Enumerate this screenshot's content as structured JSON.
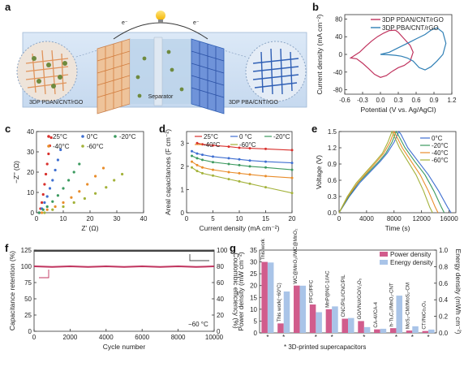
{
  "panel_letters": [
    "a",
    "b",
    "c",
    "d",
    "e",
    "f",
    "g"
  ],
  "colors": {
    "crimson": "#c0335e",
    "steelblue": "#2f7fb5",
    "red25": "#d9302c",
    "blue0": "#3f6fd1",
    "green_20": "#3c9a5f",
    "orange_40": "#e98d2b",
    "olive_60": "#a3b23a",
    "pink_bar": "#d15c8c",
    "lightblue_bar": "#a9c4e8"
  },
  "panel_a": {
    "left_label": "3DP PDAN/CNT/rGO",
    "right_label": "3DP PBA/CNT/rGO",
    "separator_label": "Separator",
    "electron_left": "e⁻",
    "electron_right": "e⁻",
    "icons": [
      "lightbulb-icon"
    ]
  },
  "chart_data": [
    {
      "id": "b",
      "type": "line",
      "xlabel": "Potential (V vs. Ag/AgCl)",
      "ylabel": "Current density (mA cm⁻²)",
      "xlim": [
        -0.6,
        1.2
      ],
      "ylim": [
        -90,
        90
      ],
      "xticks": [
        -0.6,
        -0.3,
        0.0,
        0.3,
        0.6,
        0.9,
        1.2
      ],
      "xtick_labels": [
        "-0.6",
        "-0.3",
        "0.0",
        "0.3",
        "0.6",
        "0.9",
        "1.2"
      ],
      "yticks": [
        -80,
        -40,
        0,
        40,
        80
      ],
      "legend": "top-right",
      "series": [
        {
          "name": "3DP PDAN/CNT/rGO",
          "color": "#c0335e",
          "x": [
            -0.5,
            -0.35,
            -0.25,
            -0.15,
            -0.05,
            0.05,
            0.15,
            0.25,
            0.3,
            0.4,
            0.5,
            0.55,
            0.5,
            0.4,
            0.3,
            0.2,
            0.1,
            0.0,
            -0.1,
            -0.2,
            -0.3,
            -0.4,
            -0.5
          ],
          "y": [
            -8,
            5,
            18,
            30,
            40,
            48,
            54,
            55,
            50,
            35,
            20,
            5,
            -15,
            -25,
            -30,
            -38,
            -48,
            -52,
            -45,
            -32,
            -20,
            -10,
            -8
          ]
        },
        {
          "name": "3DP PBA/CNT/rGO",
          "color": "#2f7fb5",
          "x": [
            0.0,
            0.15,
            0.3,
            0.45,
            0.6,
            0.75,
            0.85,
            0.95,
            1.05,
            1.1,
            1.05,
            0.95,
            0.85,
            0.75,
            0.65,
            0.55,
            0.45,
            0.35,
            0.25,
            0.15,
            0.0
          ],
          "y": [
            0,
            5,
            15,
            25,
            35,
            45,
            55,
            60,
            50,
            25,
            0,
            -15,
            -28,
            -35,
            -30,
            -15,
            -8,
            -4,
            -2,
            -1,
            0
          ]
        }
      ]
    },
    {
      "id": "c",
      "type": "scatter",
      "xlabel": "Z’ (Ω)",
      "ylabel": "−Z’’ (Ω)",
      "xlim": [
        0,
        40
      ],
      "ylim": [
        0,
        40
      ],
      "xticks": [
        0,
        10,
        20,
        30,
        40
      ],
      "yticks": [
        0,
        10,
        20,
        30,
        40
      ],
      "series": [
        {
          "name": "25°C",
          "color": "#d9302c",
          "x": [
            1,
            1.5,
            2,
            2.5,
            3,
            3.5,
            4,
            4.5,
            5,
            5.5
          ],
          "y": [
            0,
            2,
            5,
            9,
            14,
            19,
            24,
            29,
            33,
            37
          ]
        },
        {
          "name": "0°C",
          "color": "#3f6fd1",
          "x": [
            1,
            2,
            3,
            4,
            5,
            6,
            7,
            8,
            9
          ],
          "y": [
            0,
            2,
            5,
            8,
            12,
            16,
            21,
            26,
            31
          ]
        },
        {
          "name": "-20°C",
          "color": "#3c9a5f",
          "x": [
            1,
            2.5,
            4,
            6,
            8,
            10,
            12,
            14,
            16
          ],
          "y": [
            0,
            1.5,
            3,
            5.5,
            8.5,
            12,
            16,
            20,
            24
          ]
        },
        {
          "name": "-40°C",
          "color": "#e98d2b",
          "x": [
            2,
            4,
            7,
            10,
            13,
            16,
            19,
            22,
            25
          ],
          "y": [
            0,
            1.5,
            3,
            5,
            7.5,
            10.5,
            14,
            18,
            22
          ]
        },
        {
          "name": "-60°C",
          "color": "#a3b23a",
          "x": [
            3,
            6,
            10,
            14,
            18,
            22,
            26,
            29,
            32
          ],
          "y": [
            0,
            1.5,
            3,
            5,
            7,
            9.5,
            12.5,
            16,
            19
          ]
        }
      ]
    },
    {
      "id": "d",
      "type": "line",
      "xlabel": "Current density (mA cm⁻²)",
      "ylabel": "Areal capacitances (F cm⁻²)",
      "xlim": [
        0,
        20
      ],
      "ylim": [
        0,
        3.5
      ],
      "xticks": [
        0,
        5,
        10,
        15,
        20
      ],
      "yticks": [
        0,
        1,
        2,
        3
      ],
      "series": [
        {
          "name": "25°C",
          "color": "#d9302c",
          "x": [
            2,
            3,
            5,
            8,
            10,
            12,
            15,
            20
          ],
          "y": [
            3.0,
            2.95,
            2.9,
            2.85,
            2.8,
            2.78,
            2.75,
            2.7
          ]
        },
        {
          "name": "0 °C",
          "color": "#3f6fd1",
          "x": [
            1,
            2,
            3,
            5,
            8,
            10,
            12,
            15,
            20
          ],
          "y": [
            2.65,
            2.55,
            2.5,
            2.42,
            2.35,
            2.3,
            2.25,
            2.2,
            2.15
          ]
        },
        {
          "name": "-20°C",
          "color": "#3c9a5f",
          "x": [
            1,
            2,
            3,
            5,
            8,
            10,
            12,
            15,
            20
          ],
          "y": [
            2.45,
            2.35,
            2.28,
            2.18,
            2.1,
            2.05,
            2.0,
            1.95,
            1.85
          ]
        },
        {
          "name": "-40°C",
          "color": "#e98d2b",
          "x": [
            1,
            2,
            3,
            5,
            8,
            10,
            12,
            15,
            20
          ],
          "y": [
            2.2,
            2.05,
            1.95,
            1.85,
            1.75,
            1.7,
            1.65,
            1.58,
            1.5
          ]
        },
        {
          "name": "-60°C",
          "color": "#a3b23a",
          "x": [
            1,
            2,
            3,
            5,
            8,
            10,
            12,
            15,
            20
          ],
          "y": [
            1.95,
            1.8,
            1.7,
            1.6,
            1.45,
            1.35,
            1.25,
            1.1,
            0.85
          ]
        }
      ]
    },
    {
      "id": "e",
      "type": "line",
      "xlabel": "Time (s)",
      "ylabel": "Voltage (V)",
      "xlim": [
        0,
        17000
      ],
      "ylim": [
        0,
        1.5
      ],
      "xticks": [
        0,
        4000,
        8000,
        12000,
        16000
      ],
      "yticks": [
        0,
        0.3,
        0.6,
        0.9,
        1.2,
        1.5
      ],
      "ytick_labels": [
        "0.0",
        "0.3",
        "0.6",
        "0.9",
        "1.2",
        "1.5"
      ],
      "series": [
        {
          "name": "0°C",
          "color": "#3f6fd1",
          "x": [
            0,
            1500,
            3000,
            4500,
            6000,
            7000,
            8000,
            8700,
            9000,
            10000,
            11500,
            13000,
            14500,
            15800,
            16300
          ],
          "y": [
            0,
            0.3,
            0.55,
            0.75,
            0.95,
            1.1,
            1.3,
            1.5,
            1.45,
            1.2,
            0.95,
            0.7,
            0.4,
            0.1,
            0
          ]
        },
        {
          "name": "-20°C",
          "color": "#3c9a5f",
          "x": [
            0,
            1400,
            2800,
            4300,
            5800,
            6800,
            7700,
            8300,
            8600,
            9600,
            11000,
            12500,
            13800,
            14900,
            15300
          ],
          "y": [
            0,
            0.3,
            0.55,
            0.75,
            0.95,
            1.1,
            1.3,
            1.5,
            1.44,
            1.2,
            0.95,
            0.7,
            0.4,
            0.1,
            0
          ]
        },
        {
          "name": "-40°C",
          "color": "#e98d2b",
          "x": [
            0,
            1300,
            2700,
            4100,
            5500,
            6500,
            7400,
            8000,
            8300,
            9200,
            10500,
            11800,
            13000,
            14000,
            14400
          ],
          "y": [
            0,
            0.3,
            0.55,
            0.75,
            0.95,
            1.1,
            1.3,
            1.5,
            1.43,
            1.2,
            0.95,
            0.7,
            0.4,
            0.1,
            0
          ]
        },
        {
          "name": "-60°C",
          "color": "#a3b23a",
          "x": [
            0,
            1200,
            2500,
            3900,
            5300,
            6300,
            7100,
            7700,
            8000,
            8800,
            10000,
            11200,
            12300,
            13200,
            13600
          ],
          "y": [
            0,
            0.3,
            0.55,
            0.75,
            0.95,
            1.1,
            1.3,
            1.5,
            1.42,
            1.2,
            0.95,
            0.7,
            0.4,
            0.1,
            0
          ]
        }
      ]
    },
    {
      "id": "f",
      "type": "line",
      "xlabel": "Cycle number",
      "ylabel": "Capacitance retention (%)",
      "ylabel_right": "Coulombic efficiency (%)",
      "xlim": [
        0,
        10000
      ],
      "ylim": [
        0,
        125
      ],
      "ylim_right": [
        0,
        100
      ],
      "xticks": [
        0,
        2000,
        4000,
        6000,
        8000,
        10000
      ],
      "yticks": [
        0,
        25,
        50,
        75,
        100,
        125
      ],
      "yticks_right": [
        0,
        20,
        40,
        60,
        80,
        100
      ],
      "annotation": "−60 °C",
      "series": [
        {
          "name": "Capacitance retention",
          "color": "#c0335e",
          "axis": "left",
          "x": [
            0,
            1000,
            2000,
            3000,
            4000,
            5000,
            6000,
            7000,
            8000,
            9000,
            10000
          ],
          "y": [
            100,
            99,
            100,
            99,
            100,
            99,
            100,
            99,
            100,
            99,
            100
          ]
        },
        {
          "name": "Coulombic efficiency",
          "color": "#444444",
          "axis": "right",
          "x": [
            0,
            1000,
            2000,
            3000,
            4000,
            5000,
            6000,
            7000,
            8000,
            9000,
            10000
          ],
          "y": [
            99,
            99,
            99,
            99,
            99,
            99,
            99,
            99,
            99,
            99,
            99
          ]
        }
      ]
    },
    {
      "id": "g",
      "type": "bar",
      "ylabel": "Power density (mW cm⁻²)",
      "ylabel_right": "Energy density (mWh cm⁻²)",
      "ylim": [
        0,
        35
      ],
      "ylim_right": [
        0,
        1.0
      ],
      "yticks": [
        0,
        5,
        10,
        15,
        20,
        25,
        30,
        35
      ],
      "yticks_right": [
        0.0,
        0.2,
        0.4,
        0.6,
        0.8,
        1.0
      ],
      "ytick_labels_right": [
        "0.0",
        "0.2",
        "0.4",
        "0.6",
        "0.8",
        "1.0"
      ],
      "legend": "top-right",
      "footnote": "3D-printed supercapacitors",
      "categories": [
        "This work",
        "This work(−60°C)",
        "WC@MnO₂//WC@MnO₂",
        "PFC//PFC",
        "MnP@NC-1//AC",
        "CNC/PIL//CNC/PIL",
        "GO/VN//rGO/V₂O₅",
        "CA-4//CA-4",
        "h-Ti₃C₂//MnO₂-CNT",
        "MoS₂-CM//MoS₂-CM",
        "CT//NiCo₂O₄"
      ],
      "starred": [
        true,
        true,
        false,
        true,
        true,
        false,
        true,
        false,
        true,
        true,
        true
      ],
      "series": [
        {
          "name": "Power density",
          "color": "#d15c8c",
          "axis": "left",
          "values": [
            30,
            4,
            20,
            12,
            10,
            6,
            5,
            1.5,
            2,
            1,
            0.8
          ]
        },
        {
          "name": "Energy density",
          "color": "#a9c4e8",
          "axis": "right",
          "values": [
            0.85,
            0.5,
            0.57,
            0.25,
            0.32,
            0.18,
            0.07,
            0.05,
            0.45,
            0.08,
            0.04
          ]
        }
      ]
    }
  ]
}
